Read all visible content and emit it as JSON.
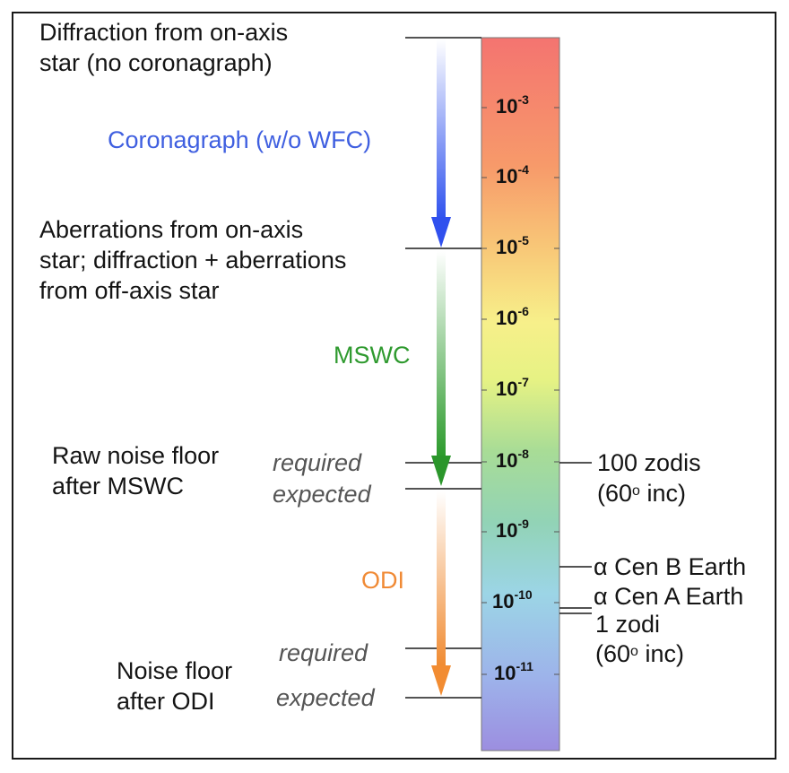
{
  "colors": {
    "coronagraph": "#3f5fe0",
    "mswc": "#2f9a2f",
    "odi": "#f08a35",
    "line": "#1a1a1a"
  },
  "labels": {
    "diffraction_line1": "Diffraction from on-axis",
    "diffraction_line2": "star (no coronagraph)",
    "coronagraph": "Coronagraph (w/o WFC)",
    "aberr_line1": "Aberrations from on-axis",
    "aberr_line2": "star; diffraction + aberrations",
    "aberr_line3": "from off-axis star",
    "mswc": "MSWC",
    "raw_line1": "Raw noise floor",
    "raw_line2": "after MSWC",
    "required_1": "required",
    "expected_1": "expected",
    "odi": "ODI",
    "required_2": "required",
    "expected_2": "expected",
    "noise_line1": "Noise floor",
    "noise_line2": "after ODI"
  },
  "scale_ticks": [
    {
      "base": "10",
      "exp": "-3"
    },
    {
      "base": "10",
      "exp": "-4"
    },
    {
      "base": "10",
      "exp": "-5"
    },
    {
      "base": "10",
      "exp": "-6"
    },
    {
      "base": "10",
      "exp": "-7"
    },
    {
      "base": "10",
      "exp": "-8"
    },
    {
      "base": "10",
      "exp": "-9"
    },
    {
      "base": "10",
      "exp": "-10"
    },
    {
      "base": "10",
      "exp": "-11"
    }
  ],
  "right_labels": {
    "zodis100_line1": "100 zodis",
    "zodis100_pre": "(60",
    "zodis100_sup": "o",
    "zodis100_post": " inc)",
    "cen_b": "α Cen B Earth",
    "cen_a": "α Cen A Earth",
    "zodi1_line1": "1 zodi",
    "zodi1_pre": "(60",
    "zodi1_sup": "o",
    "zodi1_post": " inc)"
  }
}
